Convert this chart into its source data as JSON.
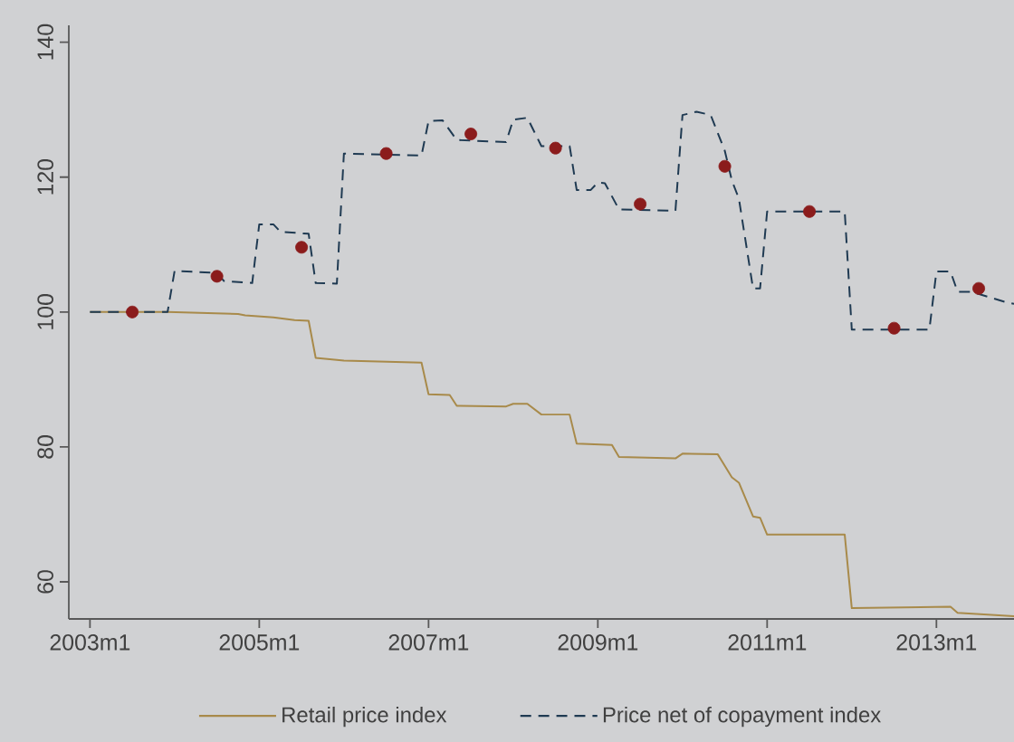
{
  "chart_data": {
    "type": "line",
    "xlim": [
      "2002-10",
      "2013-12"
    ],
    "ylim": [
      54.5,
      142.5
    ],
    "xticks": [
      {
        "value": "2003-01",
        "label": "2003m1"
      },
      {
        "value": "2005-01",
        "label": "2005m1"
      },
      {
        "value": "2007-01",
        "label": "2007m1"
      },
      {
        "value": "2009-01",
        "label": "2009m1"
      },
      {
        "value": "2011-01",
        "label": "2011m1"
      },
      {
        "value": "2013-01",
        "label": "2013m1"
      }
    ],
    "yticks": [
      60,
      80,
      100,
      120,
      140
    ],
    "legend": "bottom",
    "series": [
      {
        "name": "Retail price index",
        "color": "#a88a4a",
        "line_style": "solid",
        "x": [
          "2003-01",
          "2003-12",
          "2004-10",
          "2004-11",
          "2005-03",
          "2005-06",
          "2005-08",
          "2005-09",
          "2006-01",
          "2006-12",
          "2007-01",
          "2007-04",
          "2007-05",
          "2007-12",
          "2008-01",
          "2008-03",
          "2008-05",
          "2008-09",
          "2008-10",
          "2009-03",
          "2009-04",
          "2009-12",
          "2010-01",
          "2010-06",
          "2010-08",
          "2010-09",
          "2010-11",
          "2010-12",
          "2011-01",
          "2011-12",
          "2012-01",
          "2013-03",
          "2013-04",
          "2013-12"
        ],
        "values": [
          100,
          100,
          99.7,
          99.5,
          99.2,
          98.8,
          98.7,
          93.2,
          92.8,
          92.5,
          87.8,
          87.7,
          86.1,
          86.0,
          86.4,
          86.4,
          84.8,
          84.8,
          80.5,
          80.3,
          78.5,
          78.3,
          79.0,
          78.9,
          75.5,
          74.7,
          69.7,
          69.5,
          67.0,
          67.0,
          56.1,
          56.3,
          55.4,
          54.9
        ]
      },
      {
        "name": "Price net of copayment index",
        "color": "#1f3a52",
        "line_style": "dashed",
        "x": [
          "2003-01",
          "2003-12",
          "2004-01",
          "2004-07",
          "2004-08",
          "2004-12",
          "2005-01",
          "2005-03",
          "2005-04",
          "2005-08",
          "2005-09",
          "2005-12",
          "2006-01",
          "2006-12",
          "2007-01",
          "2007-03",
          "2007-05",
          "2007-12",
          "2008-01",
          "2008-03",
          "2008-05",
          "2008-09",
          "2008-10",
          "2008-12",
          "2009-01",
          "2009-02",
          "2009-04",
          "2009-12",
          "2010-01",
          "2010-03",
          "2010-05",
          "2010-07",
          "2010-08",
          "2010-09",
          "2010-11",
          "2010-12",
          "2011-01",
          "2011-12",
          "2012-01",
          "2012-12",
          "2013-01",
          "2013-03",
          "2013-04",
          "2013-06",
          "2013-11",
          "2013-12"
        ],
        "values": [
          100,
          100,
          106.1,
          105.8,
          104.6,
          104.3,
          113,
          113,
          111.9,
          111.6,
          104.3,
          104.2,
          123.5,
          123.2,
          128.3,
          128.4,
          125.5,
          125.2,
          128.5,
          128.8,
          124.6,
          124.6,
          118.1,
          118.1,
          119.2,
          119.1,
          115.2,
          115,
          129.2,
          129.7,
          129.2,
          123.9,
          119.5,
          116.8,
          103.5,
          103.5,
          114.9,
          114.9,
          97.4,
          97.4,
          106,
          106,
          103,
          103,
          101.4,
          101.2
        ]
      },
      {
        "type": "scatter",
        "color": "#8b1c1c",
        "marker": "circle",
        "x": [
          "2003-07",
          "2004-07",
          "2005-07",
          "2006-07",
          "2007-07",
          "2008-07",
          "2009-07",
          "2010-07",
          "2011-07",
          "2012-07",
          "2013-07"
        ],
        "values": [
          100,
          105.3,
          109.6,
          123.5,
          126.4,
          124.3,
          116,
          121.6,
          114.9,
          97.6,
          103.5
        ]
      }
    ]
  }
}
